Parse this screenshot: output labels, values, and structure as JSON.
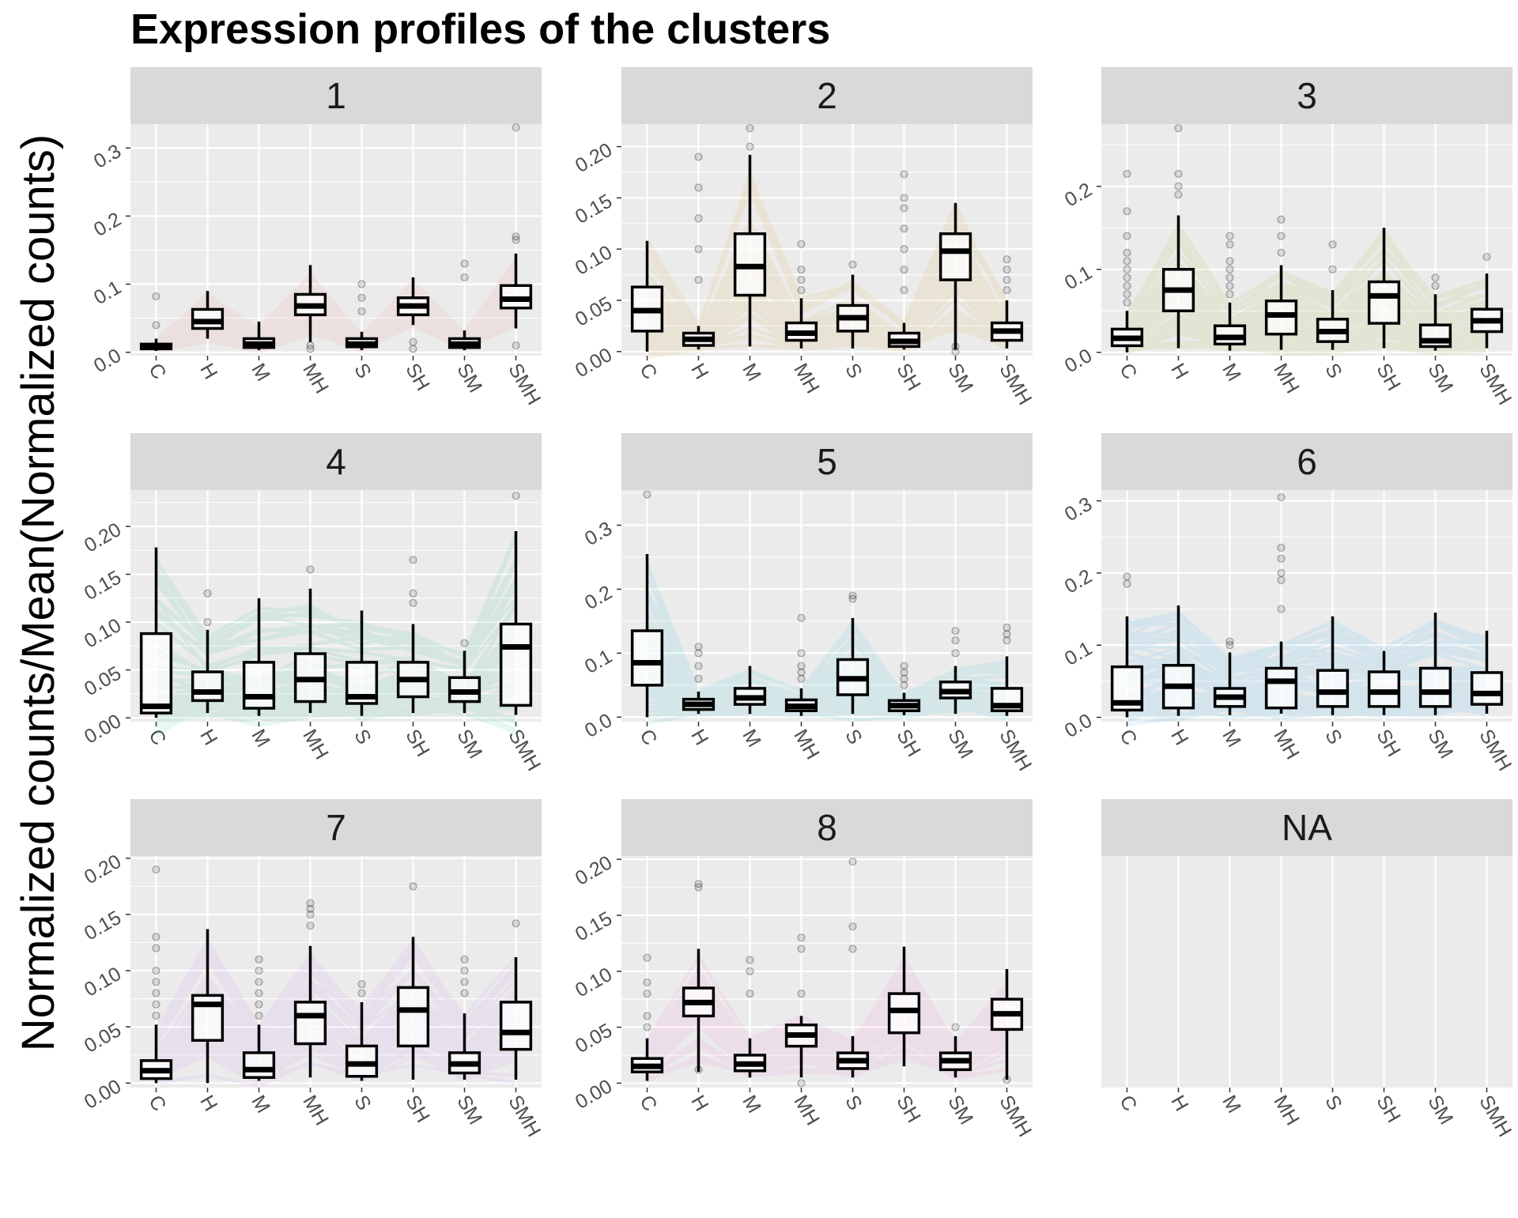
{
  "chart_data": {
    "type": "boxplot",
    "title": "Expression profiles of the clusters",
    "ylabel": "Normalized counts/Mean(Normalized counts)",
    "xlabel": "",
    "categories": [
      "C",
      "H",
      "M",
      "MH",
      "S",
      "SH",
      "SM",
      "SMH"
    ],
    "facets": [
      {
        "label": "1",
        "color": "#F8766D",
        "ylim": [
          -0.005,
          0.335
        ],
        "yticks": [
          "0.0",
          "0.1",
          "0.2",
          "0.3"
        ],
        "boxes": [
          {
            "low": 0.002,
            "q1": 0.005,
            "med": 0.008,
            "q3": 0.012,
            "high": 0.02,
            "outliers": [
              0.04,
              0.082
            ]
          },
          {
            "low": 0.02,
            "q1": 0.035,
            "med": 0.045,
            "q3": 0.063,
            "high": 0.09,
            "outliers": []
          },
          {
            "low": 0.003,
            "q1": 0.007,
            "med": 0.012,
            "q3": 0.02,
            "high": 0.045,
            "outliers": []
          },
          {
            "low": 0.015,
            "q1": 0.055,
            "med": 0.068,
            "q3": 0.085,
            "high": 0.128,
            "outliers": [
              0.005,
              0.01
            ]
          },
          {
            "low": 0.003,
            "q1": 0.008,
            "med": 0.012,
            "q3": 0.02,
            "high": 0.03,
            "outliers": [
              0.06,
              0.08,
              0.1
            ]
          },
          {
            "low": 0.04,
            "q1": 0.055,
            "med": 0.068,
            "q3": 0.08,
            "high": 0.11,
            "outliers": [
              0.005,
              0.015
            ]
          },
          {
            "low": 0.003,
            "q1": 0.007,
            "med": 0.012,
            "q3": 0.02,
            "high": 0.032,
            "outliers": [
              0.11,
              0.13
            ]
          },
          {
            "low": 0.035,
            "q1": 0.065,
            "med": 0.078,
            "q3": 0.098,
            "high": 0.145,
            "outliers": [
              0.01,
              0.165,
              0.17,
              0.33
            ]
          }
        ]
      },
      {
        "label": "2",
        "color": "#CD9600",
        "ylim": [
          -0.004,
          0.222
        ],
        "yticks": [
          "0.00",
          "0.05",
          "0.10",
          "0.15",
          "0.20"
        ],
        "boxes": [
          {
            "low": 0.0,
            "q1": 0.02,
            "med": 0.04,
            "q3": 0.063,
            "high": 0.108,
            "outliers": []
          },
          {
            "low": 0.002,
            "q1": 0.006,
            "med": 0.012,
            "q3": 0.018,
            "high": 0.025,
            "outliers": [
              0.07,
              0.1,
              0.13,
              0.16,
              0.19
            ]
          },
          {
            "low": 0.005,
            "q1": 0.055,
            "med": 0.083,
            "q3": 0.115,
            "high": 0.192,
            "outliers": [
              0.2,
              0.218
            ]
          },
          {
            "low": 0.003,
            "q1": 0.011,
            "med": 0.018,
            "q3": 0.028,
            "high": 0.052,
            "outliers": [
              0.06,
              0.07,
              0.08,
              0.105
            ]
          },
          {
            "low": 0.003,
            "q1": 0.02,
            "med": 0.033,
            "q3": 0.045,
            "high": 0.075,
            "outliers": [
              0.085
            ]
          },
          {
            "low": 0.002,
            "q1": 0.005,
            "med": 0.01,
            "q3": 0.018,
            "high": 0.028,
            "outliers": [
              0.06,
              0.08,
              0.1,
              0.12,
              0.14,
              0.15,
              0.173
            ]
          },
          {
            "low": 0.002,
            "q1": 0.07,
            "med": 0.098,
            "q3": 0.115,
            "high": 0.145,
            "outliers": [
              0.0,
              0.005
            ]
          },
          {
            "low": 0.003,
            "q1": 0.011,
            "med": 0.02,
            "q3": 0.028,
            "high": 0.05,
            "outliers": [
              0.06,
              0.07,
              0.08,
              0.09
            ]
          }
        ]
      },
      {
        "label": "3",
        "color": "#7CAE00",
        "ylim": [
          -0.004,
          0.275
        ],
        "yticks": [
          "0.0",
          "0.1",
          "0.2"
        ],
        "boxes": [
          {
            "low": 0.0,
            "q1": 0.008,
            "med": 0.017,
            "q3": 0.028,
            "high": 0.05,
            "outliers": [
              0.06,
              0.07,
              0.08,
              0.09,
              0.1,
              0.11,
              0.12,
              0.14,
              0.17,
              0.215
            ]
          },
          {
            "low": 0.005,
            "q1": 0.05,
            "med": 0.075,
            "q3": 0.1,
            "high": 0.165,
            "outliers": [
              0.19,
              0.2,
              0.215,
              0.27
            ]
          },
          {
            "low": 0.002,
            "q1": 0.01,
            "med": 0.018,
            "q3": 0.032,
            "high": 0.06,
            "outliers": [
              0.07,
              0.08,
              0.09,
              0.1,
              0.11,
              0.13,
              0.14
            ]
          },
          {
            "low": 0.003,
            "q1": 0.022,
            "med": 0.045,
            "q3": 0.062,
            "high": 0.105,
            "outliers": [
              0.12,
              0.14,
              0.16
            ]
          },
          {
            "low": 0.003,
            "q1": 0.013,
            "med": 0.025,
            "q3": 0.04,
            "high": 0.075,
            "outliers": [
              0.1,
              0.13
            ]
          },
          {
            "low": 0.005,
            "q1": 0.035,
            "med": 0.068,
            "q3": 0.085,
            "high": 0.15,
            "outliers": []
          },
          {
            "low": 0.002,
            "q1": 0.007,
            "med": 0.014,
            "q3": 0.033,
            "high": 0.07,
            "outliers": [
              0.08,
              0.09
            ]
          },
          {
            "low": 0.005,
            "q1": 0.025,
            "med": 0.038,
            "q3": 0.052,
            "high": 0.095,
            "outliers": [
              0.115
            ]
          }
        ]
      },
      {
        "label": "4",
        "color": "#00BE67",
        "ylim": [
          -0.004,
          0.238
        ],
        "yticks": [
          "0.00",
          "0.05",
          "0.10",
          "0.15",
          "0.20"
        ],
        "boxes": [
          {
            "low": 0.0,
            "q1": 0.005,
            "med": 0.012,
            "q3": 0.088,
            "high": 0.178,
            "outliers": []
          },
          {
            "low": 0.005,
            "q1": 0.018,
            "med": 0.027,
            "q3": 0.048,
            "high": 0.092,
            "outliers": [
              0.1,
              0.13
            ]
          },
          {
            "low": 0.002,
            "q1": 0.01,
            "med": 0.022,
            "q3": 0.058,
            "high": 0.125,
            "outliers": []
          },
          {
            "low": 0.005,
            "q1": 0.017,
            "med": 0.04,
            "q3": 0.067,
            "high": 0.135,
            "outliers": [
              0.155
            ]
          },
          {
            "low": 0.002,
            "q1": 0.015,
            "med": 0.022,
            "q3": 0.058,
            "high": 0.112,
            "outliers": []
          },
          {
            "low": 0.005,
            "q1": 0.022,
            "med": 0.04,
            "q3": 0.058,
            "high": 0.098,
            "outliers": [
              0.12,
              0.13,
              0.165
            ]
          },
          {
            "low": 0.005,
            "q1": 0.017,
            "med": 0.027,
            "q3": 0.042,
            "high": 0.07,
            "outliers": [
              0.078
            ]
          },
          {
            "low": 0.003,
            "q1": 0.013,
            "med": 0.074,
            "q3": 0.098,
            "high": 0.195,
            "outliers": [
              0.232
            ]
          }
        ]
      },
      {
        "label": "5",
        "color": "#00BFC4",
        "ylim": [
          -0.007,
          0.355
        ],
        "yticks": [
          "0.0",
          "0.1",
          "0.2",
          "0.3"
        ],
        "boxes": [
          {
            "low": 0.0,
            "q1": 0.05,
            "med": 0.085,
            "q3": 0.135,
            "high": 0.255,
            "outliers": [
              0.348
            ]
          },
          {
            "low": 0.005,
            "q1": 0.012,
            "med": 0.02,
            "q3": 0.028,
            "high": 0.04,
            "outliers": [
              0.06,
              0.08,
              0.1,
              0.11
            ]
          },
          {
            "low": 0.005,
            "q1": 0.02,
            "med": 0.03,
            "q3": 0.045,
            "high": 0.08,
            "outliers": []
          },
          {
            "low": 0.002,
            "q1": 0.01,
            "med": 0.017,
            "q3": 0.027,
            "high": 0.045,
            "outliers": [
              0.06,
              0.07,
              0.08,
              0.1,
              0.155
            ]
          },
          {
            "low": 0.005,
            "q1": 0.035,
            "med": 0.06,
            "q3": 0.09,
            "high": 0.155,
            "outliers": [
              0.185,
              0.19
            ]
          },
          {
            "low": 0.003,
            "q1": 0.01,
            "med": 0.018,
            "q3": 0.026,
            "high": 0.038,
            "outliers": [
              0.05,
              0.06,
              0.07,
              0.08
            ]
          },
          {
            "low": 0.005,
            "q1": 0.03,
            "med": 0.04,
            "q3": 0.055,
            "high": 0.08,
            "outliers": [
              0.1,
              0.12,
              0.135
            ]
          },
          {
            "low": 0.002,
            "q1": 0.01,
            "med": 0.018,
            "q3": 0.045,
            "high": 0.095,
            "outliers": [
              0.12,
              0.13,
              0.14
            ]
          }
        ]
      },
      {
        "label": "6",
        "color": "#00A9FF",
        "ylim": [
          -0.006,
          0.315
        ],
        "yticks": [
          "0.0",
          "0.1",
          "0.2",
          "0.3"
        ],
        "boxes": [
          {
            "low": 0.0,
            "q1": 0.01,
            "med": 0.02,
            "q3": 0.07,
            "high": 0.14,
            "outliers": [
              0.185,
              0.195
            ]
          },
          {
            "low": 0.002,
            "q1": 0.013,
            "med": 0.043,
            "q3": 0.072,
            "high": 0.155,
            "outliers": []
          },
          {
            "low": 0.003,
            "q1": 0.015,
            "med": 0.028,
            "q3": 0.04,
            "high": 0.09,
            "outliers": [
              0.1,
              0.105
            ]
          },
          {
            "low": 0.005,
            "q1": 0.013,
            "med": 0.05,
            "q3": 0.068,
            "high": 0.105,
            "outliers": [
              0.15,
              0.19,
              0.2,
              0.22,
              0.235,
              0.305
            ]
          },
          {
            "low": 0.003,
            "q1": 0.015,
            "med": 0.035,
            "q3": 0.065,
            "high": 0.14,
            "outliers": []
          },
          {
            "low": 0.003,
            "q1": 0.015,
            "med": 0.035,
            "q3": 0.063,
            "high": 0.092,
            "outliers": []
          },
          {
            "low": 0.003,
            "q1": 0.015,
            "med": 0.035,
            "q3": 0.068,
            "high": 0.145,
            "outliers": []
          },
          {
            "low": 0.005,
            "q1": 0.018,
            "med": 0.033,
            "q3": 0.062,
            "high": 0.12,
            "outliers": []
          }
        ]
      },
      {
        "label": "7",
        "color": "#C77CFF",
        "ylim": [
          -0.004,
          0.202
        ],
        "yticks": [
          "0.00",
          "0.05",
          "0.10",
          "0.15",
          "0.20"
        ],
        "boxes": [
          {
            "low": 0.0,
            "q1": 0.004,
            "med": 0.011,
            "q3": 0.02,
            "high": 0.052,
            "outliers": [
              0.06,
              0.07,
              0.08,
              0.09,
              0.1,
              0.12,
              0.13,
              0.19
            ]
          },
          {
            "low": 0.0,
            "q1": 0.038,
            "med": 0.07,
            "q3": 0.078,
            "high": 0.137,
            "outliers": []
          },
          {
            "low": 0.002,
            "q1": 0.005,
            "med": 0.012,
            "q3": 0.027,
            "high": 0.052,
            "outliers": [
              0.06,
              0.07,
              0.08,
              0.09,
              0.1,
              0.11
            ]
          },
          {
            "low": 0.005,
            "q1": 0.035,
            "med": 0.06,
            "q3": 0.072,
            "high": 0.122,
            "outliers": [
              0.14,
              0.15,
              0.155,
              0.16
            ]
          },
          {
            "low": 0.002,
            "q1": 0.006,
            "med": 0.017,
            "q3": 0.033,
            "high": 0.072,
            "outliers": [
              0.08,
              0.088
            ]
          },
          {
            "low": 0.003,
            "q1": 0.033,
            "med": 0.065,
            "q3": 0.085,
            "high": 0.13,
            "outliers": [
              0.175
            ]
          },
          {
            "low": 0.003,
            "q1": 0.009,
            "med": 0.017,
            "q3": 0.027,
            "high": 0.062,
            "outliers": [
              0.08,
              0.09,
              0.1,
              0.11
            ]
          },
          {
            "low": 0.003,
            "q1": 0.03,
            "med": 0.045,
            "q3": 0.072,
            "high": 0.112,
            "outliers": [
              0.142
            ]
          }
        ]
      },
      {
        "label": "8",
        "color": "#FF61CC",
        "ylim": [
          -0.004,
          0.203
        ],
        "yticks": [
          "0.00",
          "0.05",
          "0.10",
          "0.15",
          "0.20"
        ],
        "boxes": [
          {
            "low": 0.002,
            "q1": 0.01,
            "med": 0.015,
            "q3": 0.022,
            "high": 0.04,
            "outliers": [
              0.05,
              0.06,
              0.08,
              0.09,
              0.112
            ]
          },
          {
            "low": 0.01,
            "q1": 0.06,
            "med": 0.072,
            "q3": 0.085,
            "high": 0.12,
            "outliers": [
              0.012,
              0.175,
              0.178
            ]
          },
          {
            "low": 0.005,
            "q1": 0.011,
            "med": 0.017,
            "q3": 0.025,
            "high": 0.04,
            "outliers": [
              0.08,
              0.1,
              0.11
            ]
          },
          {
            "low": 0.005,
            "q1": 0.033,
            "med": 0.043,
            "q3": 0.052,
            "high": 0.06,
            "outliers": [
              0.0,
              0.08,
              0.12,
              0.13
            ]
          },
          {
            "low": 0.005,
            "q1": 0.013,
            "med": 0.02,
            "q3": 0.027,
            "high": 0.042,
            "outliers": [
              0.12,
              0.14,
              0.198
            ]
          },
          {
            "low": 0.015,
            "q1": 0.045,
            "med": 0.065,
            "q3": 0.08,
            "high": 0.122,
            "outliers": []
          },
          {
            "low": 0.005,
            "q1": 0.012,
            "med": 0.02,
            "q3": 0.027,
            "high": 0.042,
            "outliers": [
              0.05
            ]
          },
          {
            "low": 0.003,
            "q1": 0.048,
            "med": 0.062,
            "q3": 0.075,
            "high": 0.102,
            "outliers": [
              0.003
            ]
          }
        ]
      },
      {
        "label": "NA",
        "color": "#999999",
        "ylim": [
          0,
          1
        ],
        "yticks": [],
        "boxes": []
      }
    ]
  }
}
